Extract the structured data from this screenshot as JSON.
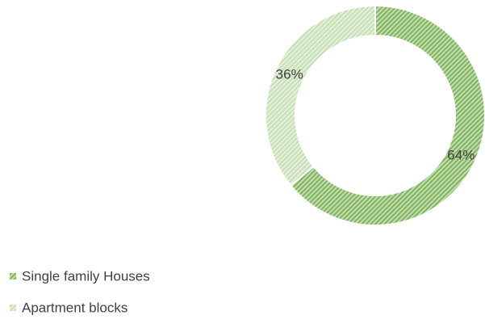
{
  "chart_data": {
    "type": "doughnut",
    "categories": [
      "Single family Houses",
      "Apartment blocks"
    ],
    "values": [
      64,
      36
    ],
    "value_labels": [
      "64%",
      "36%"
    ],
    "colors": [
      "#7fb55a",
      "#c5dfb3"
    ],
    "legend": "bottom-left"
  }
}
